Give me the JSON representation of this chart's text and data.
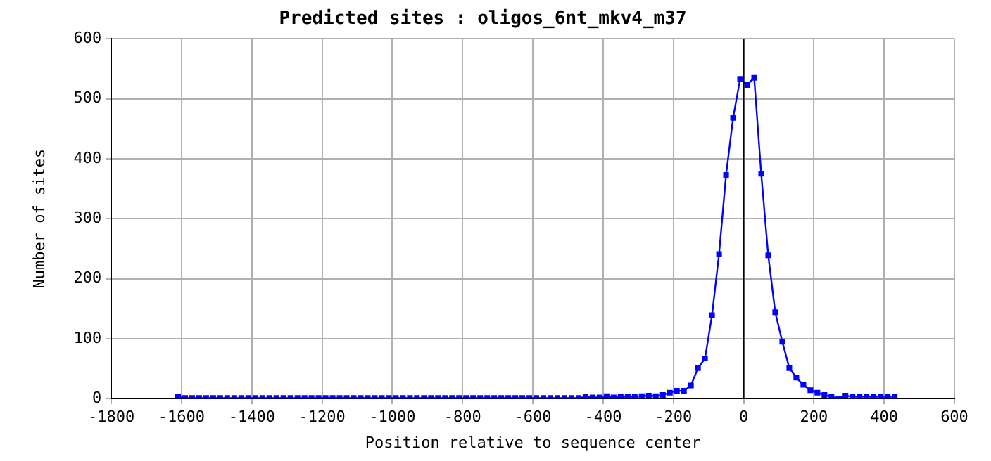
{
  "chart_data": {
    "type": "line",
    "title": "Predicted sites : oligos_6nt_mkv4_m37",
    "xlabel": "Position relative to sequence center",
    "ylabel": "Number of sites",
    "x": [
      -1610,
      -1590,
      -1570,
      -1550,
      -1530,
      -1510,
      -1490,
      -1470,
      -1450,
      -1430,
      -1410,
      -1390,
      -1370,
      -1350,
      -1330,
      -1310,
      -1290,
      -1270,
      -1250,
      -1230,
      -1210,
      -1190,
      -1170,
      -1150,
      -1130,
      -1110,
      -1090,
      -1070,
      -1050,
      -1030,
      -1010,
      -990,
      -970,
      -950,
      -930,
      -910,
      -890,
      -870,
      -850,
      -830,
      -810,
      -790,
      -770,
      -750,
      -730,
      -710,
      -690,
      -670,
      -650,
      -630,
      -610,
      -590,
      -570,
      -550,
      -530,
      -510,
      -490,
      -470,
      -450,
      -430,
      -410,
      -390,
      -370,
      -350,
      -330,
      -310,
      -290,
      -270,
      -250,
      -230,
      -210,
      -190,
      -170,
      -150,
      -130,
      -110,
      -90,
      -70,
      -50,
      -30,
      -10,
      10,
      30,
      50,
      70,
      90,
      110,
      130,
      150,
      170,
      190,
      210,
      230,
      250,
      270,
      290,
      310,
      330,
      350,
      370,
      390,
      410,
      430
    ],
    "series": [
      {
        "color": "#0000ff",
        "values": [
          3,
          1,
          1,
          1,
          1,
          1,
          1,
          1,
          1,
          1,
          1,
          1,
          1,
          1,
          1,
          1,
          1,
          1,
          1,
          1,
          1,
          1,
          1,
          1,
          1,
          1,
          1,
          1,
          1,
          1,
          1,
          1,
          1,
          1,
          1,
          1,
          1,
          1,
          1,
          1,
          1,
          1,
          1,
          1,
          1,
          1,
          1,
          1,
          1,
          1,
          1,
          1,
          1,
          1,
          1,
          1,
          1,
          1,
          3,
          2,
          2,
          4,
          2,
          3,
          3,
          3,
          4,
          5,
          4,
          6,
          10,
          13,
          13,
          22,
          51,
          67,
          139,
          241,
          373,
          468,
          533,
          523,
          535,
          375,
          239,
          144,
          95,
          51,
          35,
          23,
          14,
          10,
          6,
          3,
          0,
          5,
          3,
          3,
          3,
          3,
          3,
          3,
          3
        ]
      }
    ],
    "xlim": [
      -1800,
      600
    ],
    "xticks": [
      -1800,
      -1600,
      -1400,
      -1200,
      -1000,
      -800,
      -600,
      -400,
      -200,
      0,
      200,
      400,
      600
    ],
    "ylim": [
      0,
      600
    ],
    "yticks": [
      0,
      100,
      200,
      300,
      400,
      500,
      600
    ],
    "ref_lines": [
      {
        "axis": "x",
        "value": 0,
        "color": "#000000"
      }
    ],
    "grid": true,
    "legend": false,
    "marker": "square",
    "line_style": "solid"
  }
}
